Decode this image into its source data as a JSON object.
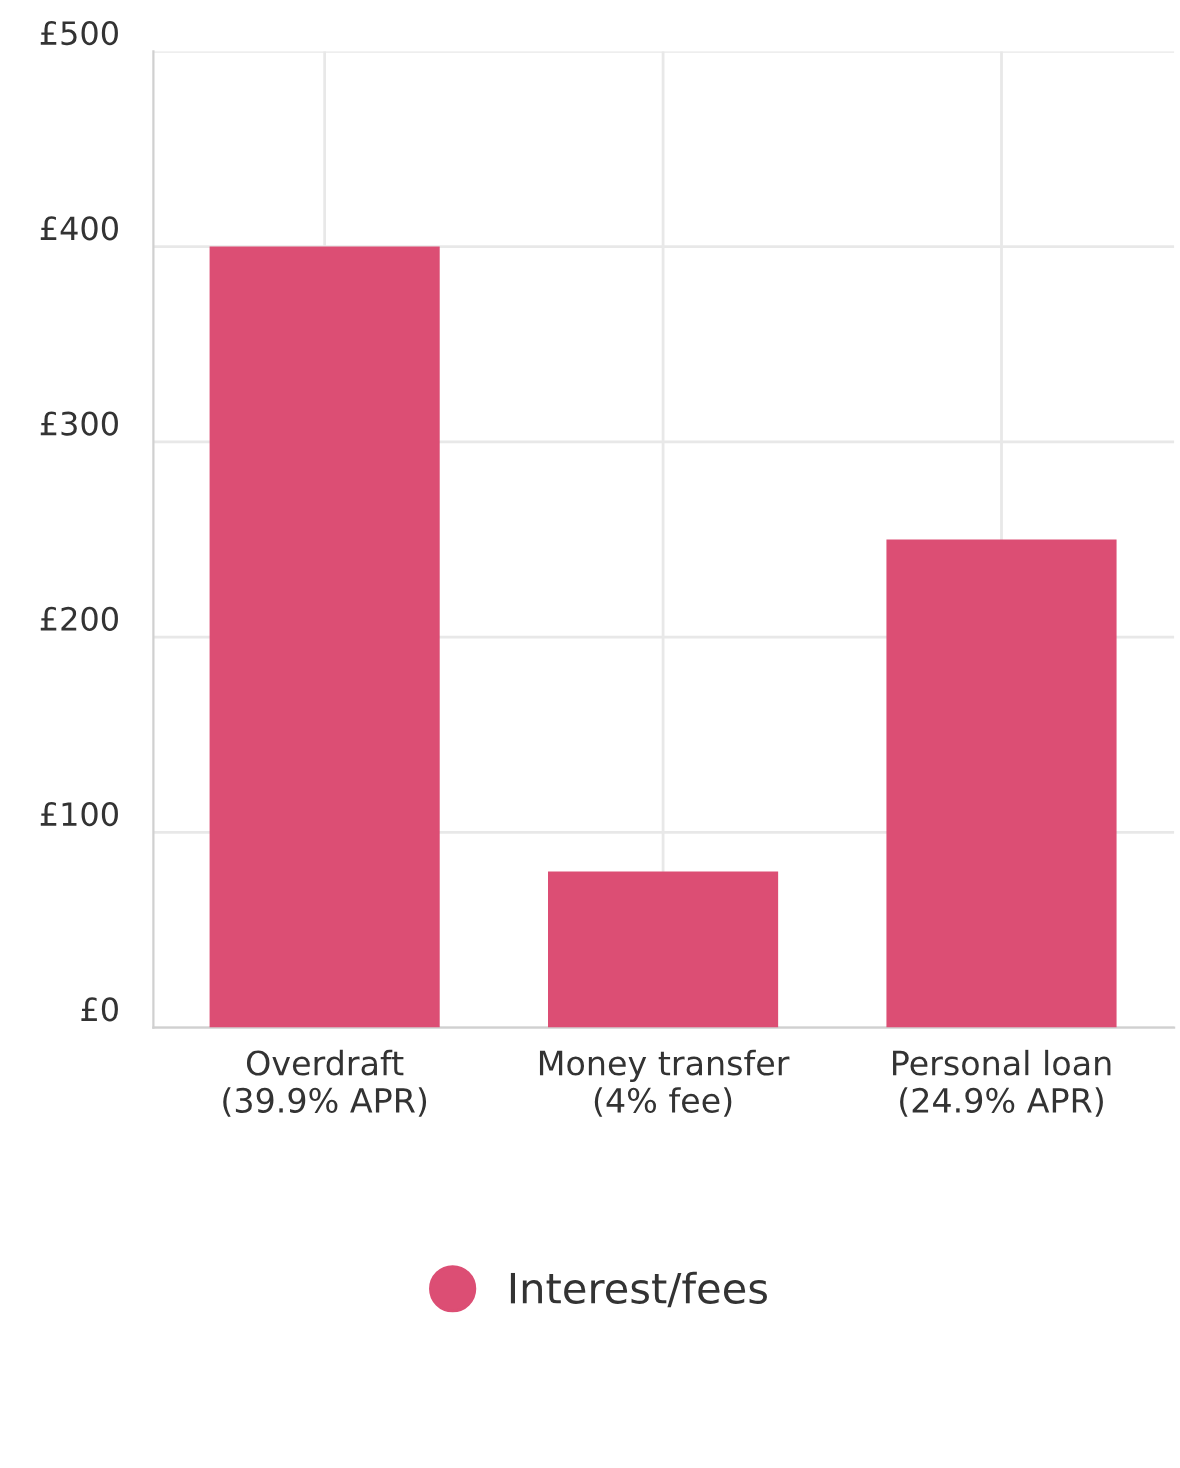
{
  "chart_data": {
    "type": "bar",
    "categories": [
      "Overdraft\n(39.9% APR)",
      "Money transfer\n(4% fee)",
      "Personal loan\n(24.9% APR)"
    ],
    "series": [
      {
        "name": "Interest/fees",
        "color": "#dc4e74",
        "values": [
          400,
          80,
          250
        ]
      }
    ],
    "ylim": [
      0,
      500
    ],
    "yticks": [
      {
        "value": 0,
        "label": "£0"
      },
      {
        "value": 100,
        "label": "£100"
      },
      {
        "value": 200,
        "label": "£200"
      },
      {
        "value": 300,
        "label": "£300"
      },
      {
        "value": 400,
        "label": "£400"
      },
      {
        "value": 500,
        "label": "£500"
      }
    ],
    "grid": true,
    "legend": "bottom",
    "marker": "circle"
  }
}
